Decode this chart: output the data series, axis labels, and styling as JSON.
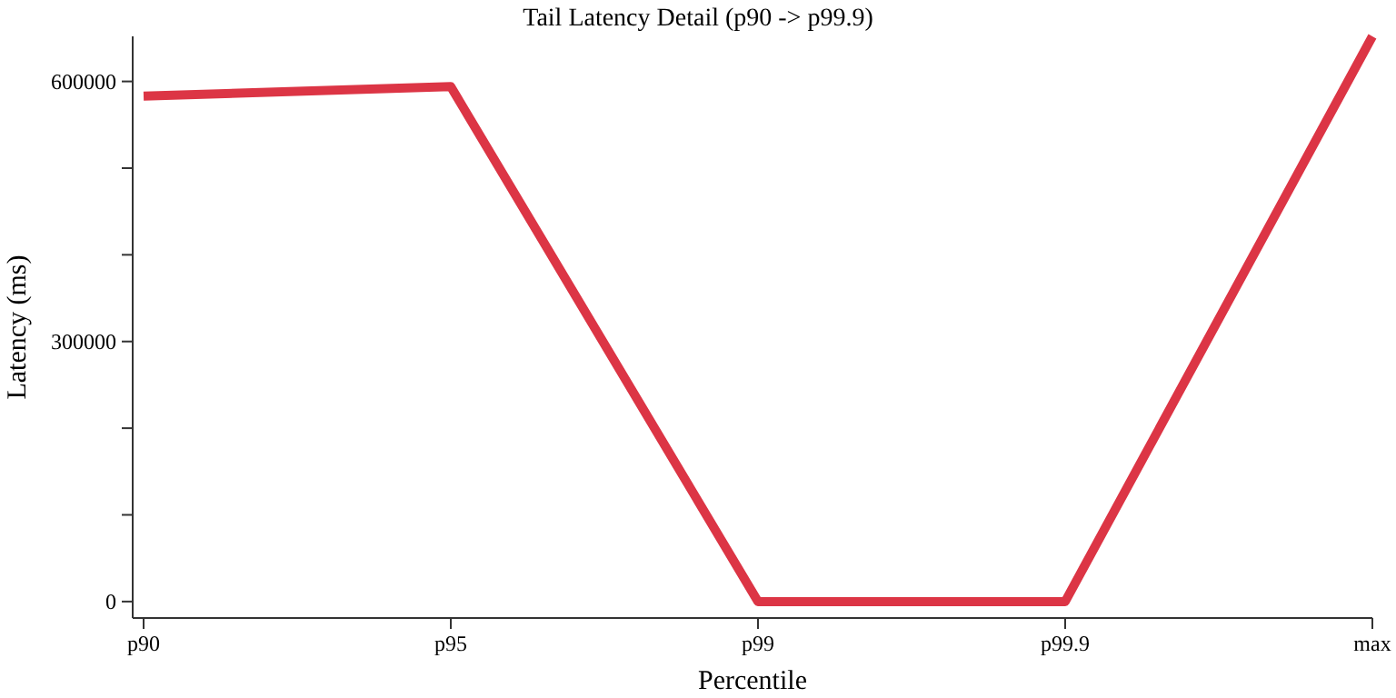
{
  "chart_data": {
    "type": "line",
    "title": "Tail Latency Detail (p90 -> p99.9)",
    "xlabel": "Percentile",
    "ylabel": "Latency (ms)",
    "categories": [
      "p90",
      "p95",
      "p99",
      "p99.9",
      "max"
    ],
    "series": [
      {
        "color": "#dc3545",
        "values": [
          583000,
          594000,
          0,
          0,
          652000
        ]
      }
    ],
    "ylim": [
      -19000,
      652000
    ],
    "yticks": [
      0,
      {
        "value": 100000,
        "label": null
      },
      {
        "value": 200000,
        "label": null
      },
      300000,
      {
        "value": 400000,
        "label": null
      },
      {
        "value": 500000,
        "label": null
      },
      600000
    ],
    "grid": false,
    "marker": "none",
    "line_style": "solid"
  }
}
